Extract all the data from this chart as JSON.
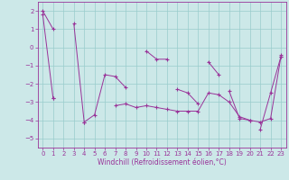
{
  "xlabel": "Windchill (Refroidissement éolien,°C)",
  "background_color": "#cce8e8",
  "grid_color": "#99cccc",
  "line_color": "#993399",
  "xlim": [
    -0.5,
    23.5
  ],
  "ylim": [
    -5.5,
    2.5
  ],
  "yticks": [
    -5,
    -4,
    -3,
    -2,
    -1,
    0,
    1,
    2
  ],
  "xticks": [
    0,
    1,
    2,
    3,
    4,
    5,
    6,
    7,
    8,
    9,
    10,
    11,
    12,
    13,
    14,
    15,
    16,
    17,
    18,
    19,
    20,
    21,
    22,
    23
  ],
  "series": [
    [
      2.0,
      1.0,
      null,
      null,
      null,
      null,
      null,
      null,
      null,
      null,
      -0.2,
      -0.65,
      -0.65,
      null,
      null,
      null,
      null,
      null,
      null,
      null,
      null,
      null,
      null,
      -0.4
    ],
    [
      null,
      null,
      null,
      1.3,
      -4.1,
      -3.7,
      -1.5,
      -1.6,
      -2.2,
      null,
      null,
      null,
      null,
      null,
      null,
      null,
      null,
      null,
      null,
      null,
      null,
      null,
      null,
      null
    ],
    [
      null,
      null,
      null,
      null,
      null,
      null,
      null,
      null,
      null,
      null,
      null,
      null,
      null,
      -2.3,
      -2.5,
      -3.1,
      null,
      null,
      null,
      null,
      null,
      null,
      null,
      null
    ],
    [
      null,
      null,
      null,
      null,
      null,
      null,
      null,
      null,
      null,
      null,
      null,
      null,
      null,
      null,
      null,
      null,
      -0.8,
      -1.5,
      null,
      null,
      null,
      null,
      null,
      null
    ],
    [
      null,
      null,
      null,
      null,
      null,
      null,
      null,
      null,
      null,
      null,
      null,
      null,
      null,
      null,
      null,
      null,
      null,
      null,
      -2.4,
      -3.9,
      -4.0,
      null,
      null,
      null
    ],
    [
      null,
      null,
      null,
      null,
      null,
      null,
      null,
      null,
      null,
      null,
      null,
      null,
      null,
      null,
      null,
      null,
      null,
      null,
      null,
      null,
      null,
      -4.5,
      -2.5,
      -0.5
    ],
    [
      null,
      -2.8,
      null,
      null,
      null,
      null,
      null,
      null,
      null,
      null,
      null,
      null,
      null,
      null,
      null,
      null,
      null,
      null,
      null,
      null,
      null,
      null,
      null,
      null
    ],
    [
      1.8,
      -2.8,
      null,
      null,
      -4.1,
      null,
      null,
      -3.2,
      -3.1,
      -3.3,
      -3.2,
      -3.3,
      -3.4,
      -3.5,
      -3.5,
      -3.5,
      -2.5,
      -2.6,
      -3.0,
      -3.8,
      -4.0,
      -4.1,
      -3.9,
      -0.5
    ]
  ]
}
